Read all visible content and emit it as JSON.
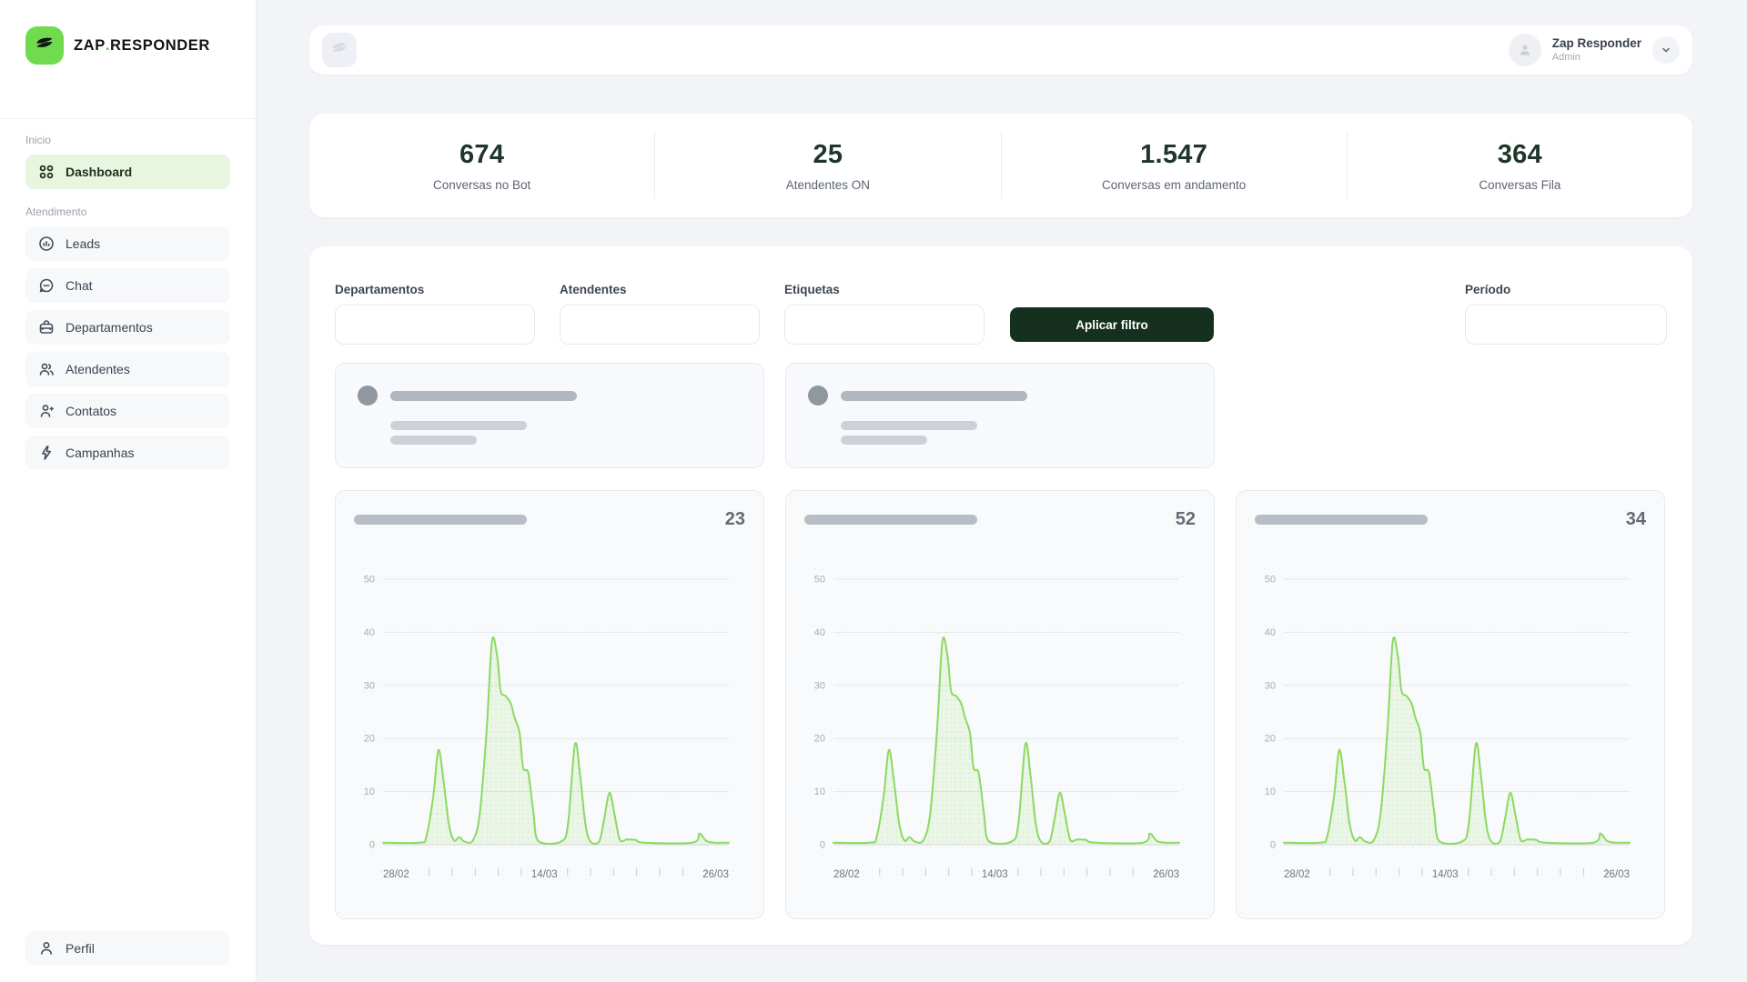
{
  "brand": {
    "logo_text_primary": "ZAP",
    "logo_dot": ".",
    "logo_text_secondary": "RESPONDER"
  },
  "sidebar": {
    "sections": [
      {
        "label": "Inicio",
        "items": [
          {
            "label": "Dashboard",
            "icon": "grid-icon",
            "active": true
          }
        ]
      },
      {
        "label": "Atendimento",
        "items": [
          {
            "label": "Leads",
            "icon": "leads-icon"
          },
          {
            "label": "Chat",
            "icon": "chat-icon"
          },
          {
            "label": "Departamentos",
            "icon": "briefcase-icon"
          },
          {
            "label": "Atendentes",
            "icon": "users-icon"
          },
          {
            "label": "Contatos",
            "icon": "user-plus-icon"
          },
          {
            "label": "Campanhas",
            "icon": "bolt-icon"
          }
        ]
      }
    ],
    "footer": {
      "label": "Perfil",
      "icon": "user-icon"
    }
  },
  "topbar": {
    "user_name": "Zap Responder",
    "user_role": "Admin"
  },
  "stats": [
    {
      "value": "674",
      "label": "Conversas no Bot"
    },
    {
      "value": "25",
      "label": "Atendentes ON"
    },
    {
      "value": "1.547",
      "label": "Conversas em andamento"
    },
    {
      "value": "364",
      "label": "Conversas Fila"
    }
  ],
  "filters": {
    "fields": [
      {
        "label": "Departamentos",
        "value": ""
      },
      {
        "label": "Atendentes",
        "value": ""
      },
      {
        "label": "Etiquetas",
        "value": ""
      }
    ],
    "apply_button": "Aplicar filtro",
    "period": {
      "label": "Período",
      "value": ""
    }
  },
  "chart_data": {
    "type": "area",
    "title": "",
    "xlabel": "",
    "ylabel": "",
    "ylim": [
      0,
      50
    ],
    "y_ticks": [
      0,
      10,
      20,
      30,
      40,
      50
    ],
    "x_tick_labels": [
      "28/02",
      "14/03",
      "26/03"
    ],
    "x_minor_ticks_between": [
      6,
      7
    ],
    "grid": true,
    "legend": false,
    "line_color": "#8cd963",
    "fill_color": "rgba(141,217,99,0.12)",
    "charts": [
      {
        "total": "23"
      },
      {
        "total": "52"
      },
      {
        "total": "34"
      }
    ],
    "points": [
      [
        0,
        0.4
      ],
      [
        10.5,
        0.4
      ],
      [
        12.5,
        1.5
      ],
      [
        14.5,
        9
      ],
      [
        16,
        17.8
      ],
      [
        17.5,
        12
      ],
      [
        19,
        4
      ],
      [
        20.5,
        0.8
      ],
      [
        22,
        1.4
      ],
      [
        23.5,
        0.6
      ],
      [
        26,
        0.8
      ],
      [
        28,
        6
      ],
      [
        30,
        22
      ],
      [
        31.5,
        38.3
      ],
      [
        33,
        35.5
      ],
      [
        34,
        29
      ],
      [
        35.5,
        28
      ],
      [
        37,
        26.5
      ],
      [
        38,
        24
      ],
      [
        39.5,
        21
      ],
      [
        40.5,
        14.5
      ],
      [
        42,
        13.5
      ],
      [
        43.5,
        6
      ],
      [
        45,
        0.6
      ],
      [
        51.5,
        0.6
      ],
      [
        53.5,
        4
      ],
      [
        55.5,
        18.9
      ],
      [
        57,
        13
      ],
      [
        58.5,
        4
      ],
      [
        60,
        0.6
      ],
      [
        62.5,
        0.6
      ],
      [
        64,
        5
      ],
      [
        65.5,
        9.8
      ],
      [
        67,
        5.5
      ],
      [
        68.5,
        0.9
      ],
      [
        70.5,
        1
      ],
      [
        73,
        0.9
      ],
      [
        75.5,
        0.4
      ],
      [
        89.5,
        0.4
      ],
      [
        91.5,
        2.1
      ],
      [
        93.5,
        0.7
      ],
      [
        96,
        0.4
      ],
      [
        100,
        0.4
      ]
    ]
  }
}
